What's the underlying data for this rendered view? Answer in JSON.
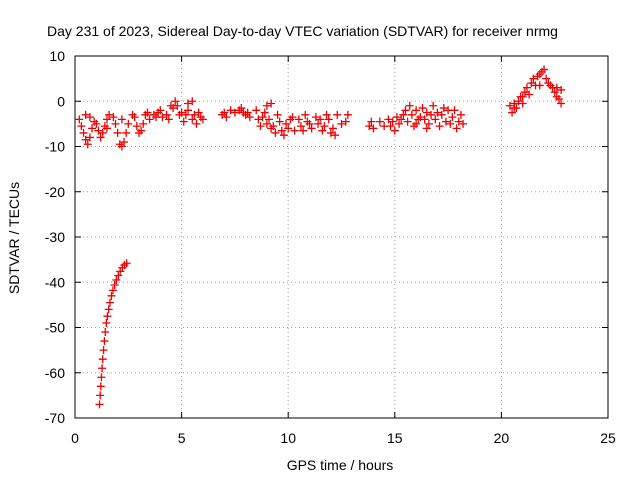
{
  "chart_data": {
    "type": "scatter",
    "title": "Day 231 of 2023, Sidereal Day-to-day VTEC variation (SDTVAR) for receiver nrmg",
    "xlabel": "GPS time / hours",
    "ylabel": "SDTVAR / TECUs",
    "xlim": [
      0,
      25
    ],
    "ylim": [
      -70,
      10
    ],
    "xticks": [
      0,
      5,
      10,
      15,
      20,
      25
    ],
    "yticks": [
      10,
      0,
      -10,
      -20,
      -30,
      -40,
      -50,
      -60,
      -70
    ],
    "grid": true,
    "marker": "+",
    "color": "#ee0000",
    "series": [
      {
        "name": "SDTVAR",
        "points": [
          [
            1.15,
            -67.0
          ],
          [
            1.18,
            -65.0
          ],
          [
            1.21,
            -63.0
          ],
          [
            1.24,
            -61.0
          ],
          [
            1.27,
            -59.0
          ],
          [
            1.3,
            -57.0
          ],
          [
            1.34,
            -55.0
          ],
          [
            1.38,
            -53.0
          ],
          [
            1.42,
            -51.0
          ],
          [
            1.47,
            -49.0
          ],
          [
            1.52,
            -47.5
          ],
          [
            1.58,
            -46.0
          ],
          [
            1.64,
            -44.5
          ],
          [
            1.71,
            -43.0
          ],
          [
            1.78,
            -41.8
          ],
          [
            1.86,
            -40.6
          ],
          [
            1.94,
            -39.5
          ],
          [
            2.03,
            -38.5
          ],
          [
            2.12,
            -37.6
          ],
          [
            2.22,
            -36.8
          ],
          [
            2.32,
            -36.2
          ],
          [
            2.42,
            -35.8
          ],
          [
            0.2,
            -4.0
          ],
          [
            0.3,
            -5.5
          ],
          [
            0.4,
            -7.0
          ],
          [
            0.5,
            -8.5
          ],
          [
            0.6,
            -9.5
          ],
          [
            0.7,
            -8.0
          ],
          [
            0.8,
            -6.0
          ],
          [
            0.9,
            -4.5
          ],
          [
            0.5,
            -3.0
          ],
          [
            0.7,
            -3.5
          ],
          [
            1.0,
            -5.0
          ],
          [
            1.1,
            -6.5
          ],
          [
            1.2,
            -8.0
          ],
          [
            1.3,
            -7.0
          ],
          [
            1.4,
            -5.5
          ],
          [
            1.5,
            -4.0
          ],
          [
            1.6,
            -3.0
          ],
          [
            1.5,
            -6.0
          ],
          [
            1.8,
            -3.5
          ],
          [
            1.9,
            -5.0
          ],
          [
            2.0,
            -7.0
          ],
          [
            2.1,
            -9.5
          ],
          [
            2.2,
            -10.0
          ],
          [
            2.3,
            -9.0
          ],
          [
            2.4,
            -7.0
          ],
          [
            2.5,
            -5.0
          ],
          [
            2.2,
            -4.0
          ],
          [
            2.7,
            -3.0
          ],
          [
            2.8,
            -3.5
          ],
          [
            2.9,
            -5.5
          ],
          [
            3.0,
            -7.0
          ],
          [
            3.1,
            -6.5
          ],
          [
            3.2,
            -5.0
          ],
          [
            3.3,
            -3.0
          ],
          [
            3.4,
            -2.5
          ],
          [
            3.5,
            -4.0
          ],
          [
            3.7,
            -3.0
          ],
          [
            3.8,
            -3.5
          ],
          [
            3.9,
            -2.5
          ],
          [
            4.0,
            -2.0
          ],
          [
            4.1,
            -3.5
          ],
          [
            4.3,
            -3.0
          ],
          [
            4.4,
            -4.0
          ],
          [
            4.5,
            -1.0
          ],
          [
            4.6,
            -1.5
          ],
          [
            4.7,
            0.0
          ],
          [
            4.8,
            -1.0
          ],
          [
            4.9,
            -3.0
          ],
          [
            5.0,
            -2.5
          ],
          [
            5.1,
            -4.5
          ],
          [
            5.2,
            -3.0
          ],
          [
            5.3,
            -2.0
          ],
          [
            5.5,
            -4.0
          ],
          [
            5.6,
            -3.0
          ],
          [
            5.7,
            -5.0
          ],
          [
            5.8,
            -2.5
          ],
          [
            5.9,
            -3.5
          ],
          [
            6.0,
            -4.0
          ],
          [
            5.3,
            -0.5
          ],
          [
            5.5,
            0.0
          ],
          [
            6.9,
            -3.0
          ],
          [
            7.0,
            -2.5
          ],
          [
            7.1,
            -3.5
          ],
          [
            7.3,
            -2.0
          ],
          [
            7.5,
            -2.5
          ],
          [
            7.7,
            -2.0
          ],
          [
            7.8,
            -1.5
          ],
          [
            7.9,
            -2.5
          ],
          [
            8.0,
            -3.0
          ],
          [
            8.1,
            -2.5
          ],
          [
            8.2,
            -3.5
          ],
          [
            8.5,
            -2.0
          ],
          [
            8.6,
            -4.0
          ],
          [
            8.7,
            -5.5
          ],
          [
            8.8,
            -3.5
          ],
          [
            8.9,
            -2.5
          ],
          [
            9.0,
            -5.0
          ],
          [
            9.1,
            -4.0
          ],
          [
            9.2,
            -6.0
          ],
          [
            9.3,
            -5.5
          ],
          [
            9.4,
            -7.0
          ],
          [
            9.5,
            -3.0
          ],
          [
            9.6,
            -4.5
          ],
          [
            9.7,
            -6.5
          ],
          [
            9.8,
            -7.5
          ],
          [
            9.9,
            -5.0
          ],
          [
            10.0,
            -6.0
          ],
          [
            10.1,
            -4.0
          ],
          [
            10.2,
            -3.5
          ],
          [
            10.3,
            -6.5
          ],
          [
            9.0,
            -1.0
          ],
          [
            9.2,
            -0.5
          ],
          [
            10.5,
            -4.0
          ],
          [
            10.6,
            -5.5
          ],
          [
            10.7,
            -6.5
          ],
          [
            10.8,
            -3.0
          ],
          [
            10.9,
            -4.5
          ],
          [
            11.0,
            -5.0
          ],
          [
            11.1,
            -6.0
          ],
          [
            11.3,
            -3.5
          ],
          [
            11.4,
            -5.0
          ],
          [
            11.5,
            -4.0
          ],
          [
            11.6,
            -6.5
          ],
          [
            11.7,
            -5.5
          ],
          [
            11.8,
            -3.0
          ],
          [
            11.9,
            -4.0
          ],
          [
            12.0,
            -7.0
          ],
          [
            12.1,
            -6.0
          ],
          [
            12.2,
            -7.5
          ],
          [
            12.3,
            -3.0
          ],
          [
            12.5,
            -5.0
          ],
          [
            12.7,
            -4.5
          ],
          [
            12.8,
            -3.0
          ],
          [
            13.8,
            -5.5
          ],
          [
            13.9,
            -4.5
          ],
          [
            14.0,
            -6.0
          ],
          [
            14.3,
            -4.5
          ],
          [
            14.5,
            -5.5
          ],
          [
            14.7,
            -4.0
          ],
          [
            14.8,
            -5.5
          ],
          [
            14.9,
            -4.5
          ],
          [
            15.0,
            -6.5
          ],
          [
            15.1,
            -3.5
          ],
          [
            15.2,
            -5.0
          ],
          [
            15.3,
            -4.0
          ],
          [
            15.4,
            -3.0
          ],
          [
            15.5,
            -2.0
          ],
          [
            15.6,
            -4.5
          ],
          [
            15.7,
            -1.0
          ],
          [
            15.8,
            -3.0
          ],
          [
            15.9,
            -5.5
          ],
          [
            16.0,
            -2.0
          ],
          [
            16.1,
            -4.0
          ],
          [
            16.2,
            -3.5
          ],
          [
            16.3,
            -1.5
          ],
          [
            16.4,
            -4.0
          ],
          [
            16.5,
            -2.5
          ],
          [
            16.6,
            -5.0
          ],
          [
            16.7,
            -3.0
          ],
          [
            16.8,
            -1.0
          ],
          [
            16.9,
            -4.0
          ],
          [
            17.0,
            -2.5
          ],
          [
            17.1,
            -5.5
          ],
          [
            17.2,
            -3.0
          ],
          [
            17.3,
            -1.5
          ],
          [
            17.4,
            -4.5
          ],
          [
            17.5,
            -2.0
          ],
          [
            17.6,
            -5.0
          ],
          [
            17.7,
            -3.5
          ],
          [
            17.8,
            -2.0
          ],
          [
            17.9,
            -6.0
          ],
          [
            18.0,
            -4.5
          ],
          [
            18.1,
            -3.0
          ],
          [
            18.2,
            -5.0
          ],
          [
            16.0,
            -5.0
          ],
          [
            16.5,
            -6.0
          ],
          [
            20.4,
            -1.0
          ],
          [
            20.5,
            -2.5
          ],
          [
            20.6,
            -0.5
          ],
          [
            20.7,
            -1.5
          ],
          [
            20.8,
            0.0
          ],
          [
            20.9,
            1.0
          ],
          [
            21.0,
            -0.5
          ],
          [
            21.1,
            2.0
          ],
          [
            21.2,
            3.0
          ],
          [
            21.3,
            1.5
          ],
          [
            21.4,
            4.0
          ],
          [
            21.5,
            5.0
          ],
          [
            21.6,
            3.5
          ],
          [
            21.7,
            5.5
          ],
          [
            21.8,
            6.0
          ],
          [
            21.9,
            6.5
          ],
          [
            22.0,
            7.0
          ],
          [
            22.1,
            5.0
          ],
          [
            22.2,
            4.0
          ],
          [
            22.3,
            3.5
          ],
          [
            22.4,
            3.0
          ],
          [
            22.5,
            2.0
          ],
          [
            22.6,
            1.0
          ],
          [
            22.7,
            0.5
          ],
          [
            22.8,
            -0.5
          ],
          [
            22.8,
            2.5
          ],
          [
            22.6,
            3.0
          ],
          [
            21.8,
            3.5
          ],
          [
            20.6,
            -1.5
          ],
          [
            21.0,
            1.0
          ]
        ]
      }
    ]
  }
}
